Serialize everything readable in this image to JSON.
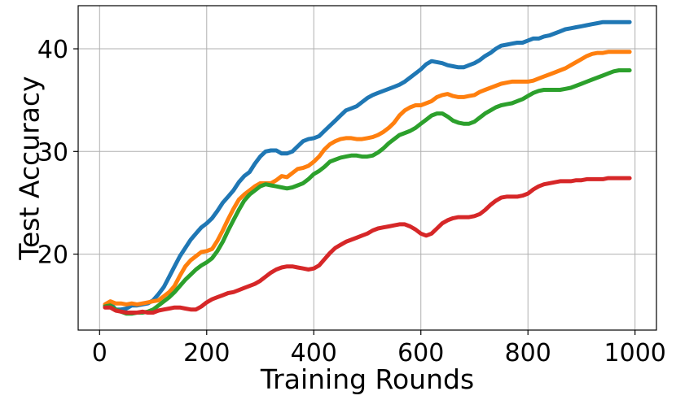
{
  "chart_data": {
    "type": "line",
    "title": "",
    "xlabel": "Training Rounds",
    "ylabel": "Test Accuracy",
    "xlim": [
      -40,
      1040
    ],
    "ylim": [
      12.6,
      44.2
    ],
    "xticks": [
      0,
      200,
      400,
      600,
      800,
      1000
    ],
    "yticks": [
      20,
      30,
      40
    ],
    "grid": true,
    "legend": "none",
    "series": [
      {
        "color": "#1f77b4",
        "x": [
          10,
          20,
          30,
          40,
          50,
          60,
          70,
          80,
          90,
          100,
          110,
          120,
          130,
          140,
          150,
          160,
          170,
          180,
          190,
          200,
          210,
          220,
          230,
          240,
          250,
          260,
          270,
          280,
          290,
          300,
          310,
          320,
          330,
          340,
          350,
          360,
          370,
          380,
          390,
          400,
          410,
          420,
          430,
          440,
          450,
          460,
          470,
          480,
          490,
          500,
          510,
          520,
          530,
          540,
          550,
          560,
          570,
          580,
          590,
          600,
          610,
          620,
          630,
          640,
          650,
          660,
          670,
          680,
          690,
          700,
          710,
          720,
          730,
          740,
          750,
          760,
          770,
          780,
          790,
          800,
          810,
          820,
          830,
          840,
          850,
          860,
          870,
          880,
          890,
          900,
          910,
          920,
          930,
          940,
          950,
          960,
          970,
          980,
          990
        ],
        "values": [
          15.0,
          15.2,
          14.6,
          14.6,
          14.7,
          15.0,
          15.0,
          15.1,
          15.2,
          15.5,
          16.1,
          16.8,
          17.8,
          18.8,
          19.8,
          20.6,
          21.4,
          22.0,
          22.6,
          23.0,
          23.5,
          24.2,
          25.0,
          25.6,
          26.2,
          27.0,
          27.6,
          28.0,
          28.8,
          29.5,
          30.0,
          30.1,
          30.1,
          29.8,
          29.8,
          30.0,
          30.5,
          31.0,
          31.2,
          31.3,
          31.5,
          32.0,
          32.5,
          33.0,
          33.5,
          34.0,
          34.2,
          34.4,
          34.8,
          35.2,
          35.5,
          35.7,
          35.9,
          36.1,
          36.3,
          36.5,
          36.8,
          37.2,
          37.6,
          38.0,
          38.5,
          38.8,
          38.7,
          38.6,
          38.4,
          38.3,
          38.2,
          38.2,
          38.4,
          38.6,
          38.9,
          39.3,
          39.6,
          40.0,
          40.3,
          40.4,
          40.5,
          40.6,
          40.6,
          40.8,
          41.0,
          41.0,
          41.2,
          41.3,
          41.5,
          41.7,
          41.9,
          42.0,
          42.1,
          42.2,
          42.3,
          42.4,
          42.5,
          42.6,
          42.6,
          42.6,
          42.6,
          42.6,
          42.6
        ]
      },
      {
        "color": "#ff7f0e",
        "x": [
          10,
          20,
          30,
          40,
          50,
          60,
          70,
          80,
          90,
          100,
          110,
          120,
          130,
          140,
          150,
          160,
          170,
          180,
          190,
          200,
          210,
          220,
          230,
          240,
          250,
          260,
          270,
          280,
          290,
          300,
          310,
          320,
          330,
          340,
          350,
          360,
          370,
          380,
          390,
          400,
          410,
          420,
          430,
          440,
          450,
          460,
          470,
          480,
          490,
          500,
          510,
          520,
          530,
          540,
          550,
          560,
          570,
          580,
          590,
          600,
          610,
          620,
          630,
          640,
          650,
          660,
          670,
          680,
          690,
          700,
          710,
          720,
          730,
          740,
          750,
          760,
          770,
          780,
          790,
          800,
          810,
          820,
          830,
          840,
          850,
          860,
          870,
          880,
          890,
          900,
          910,
          920,
          930,
          940,
          950,
          960,
          970,
          980,
          990
        ],
        "values": [
          15.1,
          15.4,
          15.2,
          15.2,
          15.1,
          15.2,
          15.1,
          15.2,
          15.3,
          15.4,
          15.5,
          15.9,
          16.3,
          16.9,
          17.9,
          18.8,
          19.4,
          19.8,
          20.2,
          20.3,
          20.5,
          21.3,
          22.3,
          23.4,
          24.4,
          25.3,
          25.8,
          26.2,
          26.6,
          26.9,
          26.9,
          26.9,
          27.2,
          27.6,
          27.5,
          27.9,
          28.3,
          28.4,
          28.6,
          29.0,
          29.5,
          30.2,
          30.7,
          31.0,
          31.2,
          31.3,
          31.3,
          31.2,
          31.2,
          31.3,
          31.4,
          31.6,
          31.9,
          32.3,
          32.8,
          33.5,
          34.0,
          34.3,
          34.5,
          34.5,
          34.7,
          34.9,
          35.3,
          35.5,
          35.6,
          35.4,
          35.3,
          35.3,
          35.4,
          35.5,
          35.8,
          36.0,
          36.2,
          36.4,
          36.6,
          36.7,
          36.8,
          36.8,
          36.8,
          36.8,
          36.9,
          37.1,
          37.3,
          37.5,
          37.7,
          37.9,
          38.1,
          38.4,
          38.7,
          39.0,
          39.3,
          39.5,
          39.6,
          39.6,
          39.7,
          39.7,
          39.7,
          39.7,
          39.7
        ]
      },
      {
        "color": "#2ca02c",
        "x": [
          10,
          20,
          30,
          40,
          50,
          60,
          70,
          80,
          90,
          100,
          110,
          120,
          130,
          140,
          150,
          160,
          170,
          180,
          190,
          200,
          210,
          220,
          230,
          240,
          250,
          260,
          270,
          280,
          290,
          300,
          310,
          320,
          330,
          340,
          350,
          360,
          370,
          380,
          390,
          400,
          410,
          420,
          430,
          440,
          450,
          460,
          470,
          480,
          490,
          500,
          510,
          520,
          530,
          540,
          550,
          560,
          570,
          580,
          590,
          600,
          610,
          620,
          630,
          640,
          650,
          660,
          670,
          680,
          690,
          700,
          710,
          720,
          730,
          740,
          750,
          760,
          770,
          780,
          790,
          800,
          810,
          820,
          830,
          840,
          850,
          860,
          870,
          880,
          890,
          900,
          910,
          920,
          930,
          940,
          950,
          960,
          970,
          980,
          990
        ],
        "values": [
          14.9,
          15.0,
          14.6,
          14.4,
          14.2,
          14.2,
          14.3,
          14.3,
          14.4,
          14.6,
          15.0,
          15.4,
          15.8,
          16.3,
          16.9,
          17.5,
          18.0,
          18.5,
          18.9,
          19.2,
          19.6,
          20.3,
          21.2,
          22.3,
          23.3,
          24.3,
          25.2,
          25.8,
          26.2,
          26.6,
          26.8,
          26.7,
          26.6,
          26.5,
          26.4,
          26.5,
          26.7,
          26.9,
          27.3,
          27.8,
          28.1,
          28.5,
          29.0,
          29.2,
          29.4,
          29.5,
          29.6,
          29.6,
          29.5,
          29.5,
          29.6,
          29.9,
          30.3,
          30.8,
          31.2,
          31.6,
          31.8,
          32.0,
          32.3,
          32.7,
          33.1,
          33.5,
          33.7,
          33.7,
          33.4,
          33.0,
          32.8,
          32.7,
          32.7,
          32.9,
          33.3,
          33.7,
          34.0,
          34.3,
          34.5,
          34.6,
          34.7,
          34.9,
          35.1,
          35.4,
          35.7,
          35.9,
          36.0,
          36.0,
          36.0,
          36.0,
          36.1,
          36.2,
          36.4,
          36.6,
          36.8,
          37.0,
          37.2,
          37.4,
          37.6,
          37.8,
          37.9,
          37.9,
          37.9
        ]
      },
      {
        "color": "#d62728",
        "x": [
          10,
          20,
          30,
          40,
          50,
          60,
          70,
          80,
          90,
          100,
          110,
          120,
          130,
          140,
          150,
          160,
          170,
          180,
          190,
          200,
          210,
          220,
          230,
          240,
          250,
          260,
          270,
          280,
          290,
          300,
          310,
          320,
          330,
          340,
          350,
          360,
          370,
          380,
          390,
          400,
          410,
          420,
          430,
          440,
          450,
          460,
          470,
          480,
          490,
          500,
          510,
          520,
          530,
          540,
          550,
          560,
          570,
          580,
          590,
          600,
          610,
          620,
          630,
          640,
          650,
          660,
          670,
          680,
          690,
          700,
          710,
          720,
          730,
          740,
          750,
          760,
          770,
          780,
          790,
          800,
          810,
          820,
          830,
          840,
          850,
          860,
          870,
          880,
          890,
          900,
          910,
          920,
          930,
          940,
          950,
          960,
          970,
          980,
          990
        ],
        "values": [
          14.8,
          14.8,
          14.5,
          14.4,
          14.3,
          14.3,
          14.3,
          14.4,
          14.3,
          14.3,
          14.5,
          14.6,
          14.7,
          14.8,
          14.8,
          14.7,
          14.6,
          14.6,
          14.9,
          15.3,
          15.6,
          15.8,
          16.0,
          16.2,
          16.3,
          16.5,
          16.7,
          16.9,
          17.1,
          17.4,
          17.8,
          18.2,
          18.5,
          18.7,
          18.8,
          18.8,
          18.7,
          18.6,
          18.5,
          18.6,
          18.9,
          19.5,
          20.1,
          20.6,
          20.9,
          21.2,
          21.4,
          21.6,
          21.8,
          22.0,
          22.3,
          22.5,
          22.6,
          22.7,
          22.8,
          22.9,
          22.9,
          22.7,
          22.4,
          22.0,
          21.8,
          22.0,
          22.5,
          23.0,
          23.3,
          23.5,
          23.6,
          23.6,
          23.6,
          23.7,
          23.9,
          24.3,
          24.8,
          25.2,
          25.5,
          25.6,
          25.6,
          25.6,
          25.7,
          25.9,
          26.3,
          26.6,
          26.8,
          26.9,
          27.0,
          27.1,
          27.1,
          27.1,
          27.2,
          27.2,
          27.3,
          27.3,
          27.3,
          27.3,
          27.4,
          27.4,
          27.4,
          27.4,
          27.4
        ]
      }
    ]
  }
}
